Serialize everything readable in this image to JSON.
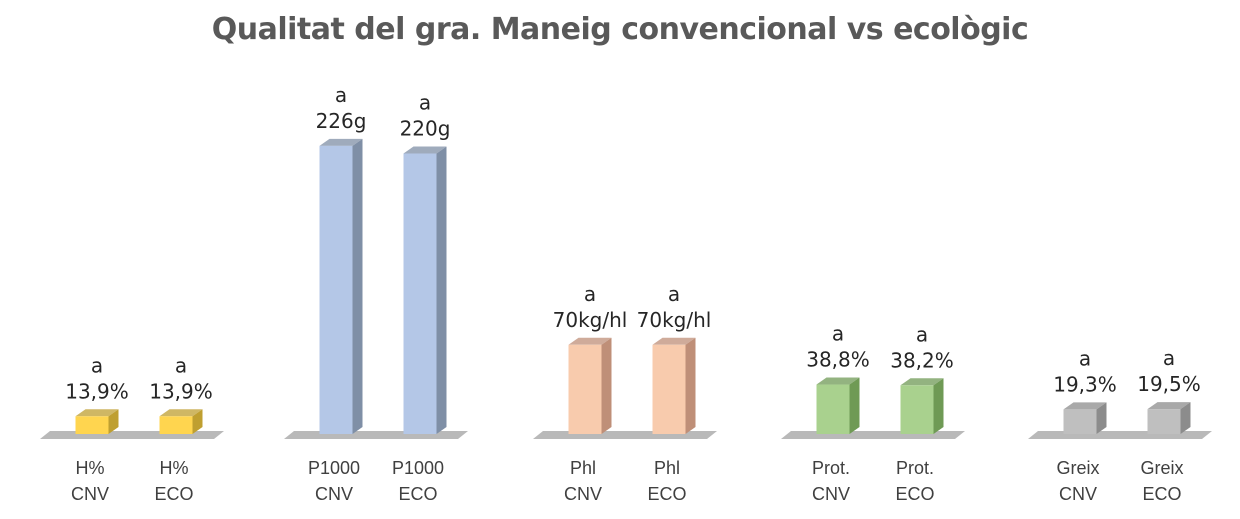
{
  "chart_data": {
    "type": "bar",
    "title": "Qualitat del gra. Maneig convencional vs ecològic",
    "categories": [
      [
        "H%",
        "CNV"
      ],
      [
        "H%",
        "ECO"
      ],
      [
        "P1000",
        "CNV"
      ],
      [
        "P1000",
        "ECO"
      ],
      [
        "Phl",
        "CNV"
      ],
      [
        "Phl",
        "ECO"
      ],
      [
        "Prot.",
        "CNV"
      ],
      [
        "Prot.",
        "ECO"
      ],
      [
        "Greix",
        "CNV"
      ],
      [
        "Greix",
        "ECO"
      ]
    ],
    "values": [
      13.9,
      13.9,
      226,
      220,
      70,
      70,
      38.8,
      38.2,
      19.3,
      19.5
    ],
    "data_labels": [
      "13,9%",
      "13,9%",
      "226g",
      "220g",
      "70kg/hl",
      "70kg/hl",
      "38,8%",
      "38,2%",
      "19,3%",
      "19,5%"
    ],
    "significance": [
      "a",
      "a",
      "a",
      "a",
      "a",
      "a",
      "a",
      "a",
      "a",
      "a"
    ],
    "colors": [
      "#ffd54f",
      "#ffd54f",
      "#b4c7e7",
      "#b4c7e7",
      "#f8cbad",
      "#f8cbad",
      "#a9d18e",
      "#a9d18e",
      "#bfbfbf",
      "#bfbfbf"
    ],
    "side_colors": [
      "#bf9f30",
      "#bf9f30",
      "#7f8fa6",
      "#7f8fa6",
      "#bf8f78",
      "#bf8f78",
      "#6f9a55",
      "#6f9a55",
      "#8c8c8c",
      "#8c8c8c"
    ],
    "grid": false,
    "legend": "none"
  }
}
